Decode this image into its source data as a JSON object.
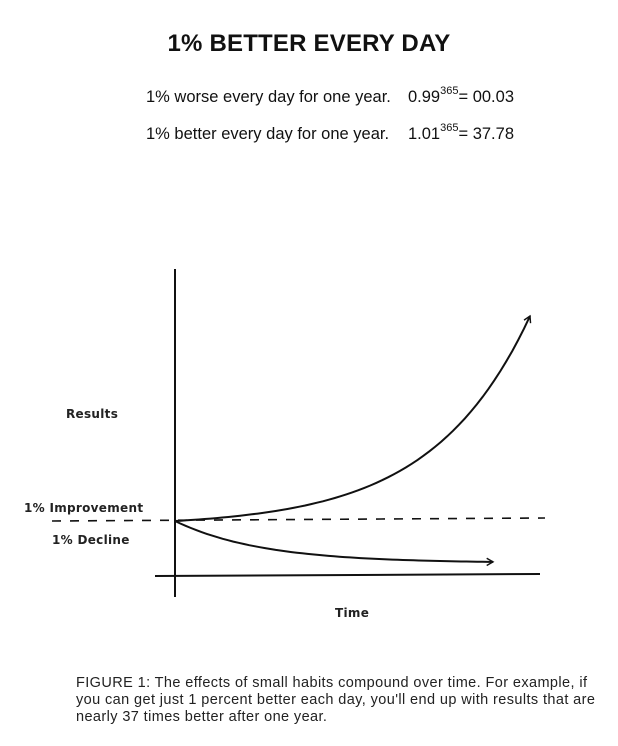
{
  "title": "1% BETTER EVERY DAY",
  "equations": [
    {
      "label": "1% worse every day for one year.",
      "base": "0.99",
      "exponent": "365",
      "result": "= 00.03"
    },
    {
      "label": "1% better every day for one year.",
      "base": "1.01",
      "exponent": "365",
      "result": "= 37.78"
    }
  ],
  "chart_data": {
    "type": "line",
    "ylabel": "Results",
    "xlabel": "Time",
    "series": [
      {
        "name": "1% Improvement",
        "growth_rate": 1.01,
        "x": [
          0,
          365
        ],
        "y": [
          1,
          37.78
        ],
        "color": "#111111"
      },
      {
        "name": "1% Decline",
        "growth_rate": 0.99,
        "x": [
          0,
          365
        ],
        "y": [
          1,
          0.03
        ],
        "color": "#111111"
      }
    ],
    "baseline": {
      "y": 1,
      "style": "dashed"
    },
    "grid": false
  },
  "caption": "FIGURE 1: The effects of small habits compound over time. For example, if you can get just 1 percent better each day, you'll end up with results that are nearly 37 times better after one year."
}
